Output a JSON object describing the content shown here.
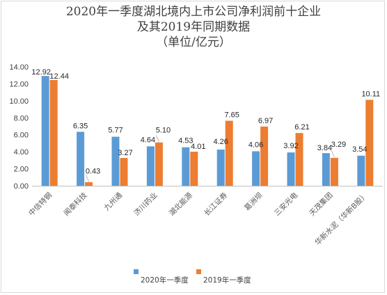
{
  "chart_data": {
    "type": "bar",
    "title_lines": [
      "2020年一季度湖北境内上市公司净利润前十企业",
      "及其2019年同期数据",
      "（单位/亿元）"
    ],
    "categories": [
      "中信特钢",
      "闻泰科技",
      "九州通",
      "济川药业",
      "湖北能源",
      "长江证券",
      "葛洲坝",
      "三安光电",
      "天茂集团",
      "华新水泥（华新B股）"
    ],
    "series": [
      {
        "name": "2020年一季度",
        "color": "#5B9BD5",
        "values": [
          12.92,
          6.35,
          5.77,
          4.64,
          4.53,
          4.26,
          4.06,
          3.92,
          3.84,
          3.54
        ],
        "labels": [
          "12.92",
          "6.35",
          "5.77",
          "4.64",
          "4.53",
          "4.26",
          "4.06",
          "3.92",
          "3.84",
          "3.54"
        ]
      },
      {
        "name": "2019年一季度",
        "color": "#ED7D31",
        "values": [
          12.44,
          0.43,
          3.27,
          5.1,
          4.01,
          7.65,
          6.97,
          6.21,
          3.29,
          10.11
        ],
        "labels": [
          "12.44",
          "0.43",
          "3.27",
          "5.10",
          "4.01",
          "7.65",
          "6.97",
          "6.21",
          "3.29",
          "10.11"
        ]
      }
    ],
    "yticks": [
      "0.00",
      "2.00",
      "4.00",
      "6.00",
      "8.00",
      "10.00",
      "12.00",
      "14.00"
    ],
    "ylim": [
      0,
      14
    ],
    "grid": false,
    "legend_position": "bottom"
  }
}
